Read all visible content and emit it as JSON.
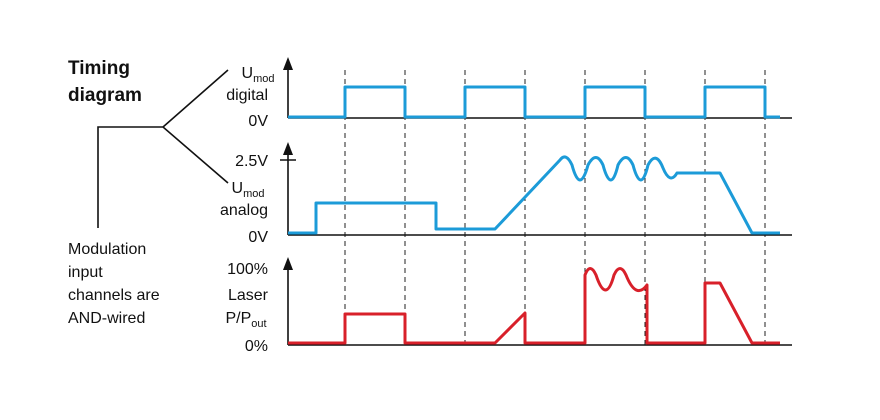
{
  "title": [
    "Timing",
    "diagram"
  ],
  "note": [
    "Modulation",
    "input",
    "channels are",
    "AND-wired"
  ],
  "digital": {
    "symbol": "U",
    "subscript": "mod",
    "name": "digital",
    "zero": "0V"
  },
  "analog": {
    "symbol": "U",
    "subscript": "mod",
    "name": "analog",
    "top": "2.5V",
    "zero": "0V"
  },
  "laser": {
    "name": "Laser",
    "symbol": "P/P",
    "subscript": "out",
    "top": "100%",
    "zero": "0%"
  }
}
